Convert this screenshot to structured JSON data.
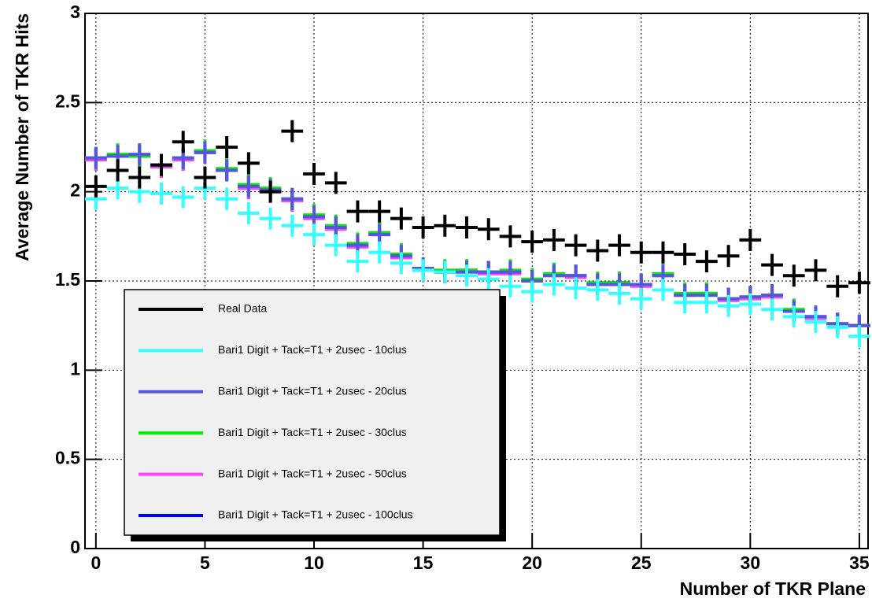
{
  "chart_data": {
    "type": "errorcross",
    "x_label": "Number of TKR Plane",
    "y_label": "Average Number of TKR Hits",
    "x": [
      0,
      1,
      2,
      3,
      4,
      5,
      6,
      7,
      8,
      9,
      10,
      11,
      12,
      13,
      14,
      15,
      16,
      17,
      18,
      19,
      20,
      21,
      22,
      23,
      24,
      25,
      26,
      27,
      28,
      29,
      30,
      31,
      32,
      33,
      34,
      35
    ],
    "xlim": [
      -0.5,
      35.4
    ],
    "xticks": [
      0,
      5,
      10,
      15,
      20,
      25,
      30,
      35
    ],
    "ylim": [
      0,
      3
    ],
    "yticks": [
      0,
      0.5,
      1,
      1.5,
      2,
      2.5,
      3
    ],
    "grid": true,
    "legend": "lower-left",
    "series": [
      {
        "name": "Real Data",
        "color": "#000000",
        "values": [
          2.03,
          2.12,
          2.08,
          2.15,
          2.28,
          2.08,
          2.25,
          2.16,
          2.0,
          2.34,
          2.1,
          2.05,
          1.89,
          1.89,
          1.85,
          1.8,
          1.81,
          1.8,
          1.79,
          1.75,
          1.72,
          1.73,
          1.7,
          1.67,
          1.7,
          1.66,
          1.66,
          1.65,
          1.61,
          1.64,
          1.73,
          1.59,
          1.53,
          1.56,
          1.47,
          1.49
        ]
      },
      {
        "name": "Bari1 Digit + Tack=T1 + 2usec - 10clus",
        "color": "#33ffff",
        "values": [
          1.96,
          2.02,
          2.0,
          1.99,
          1.97,
          2.02,
          1.96,
          1.88,
          1.85,
          1.81,
          1.76,
          1.7,
          1.61,
          1.66,
          1.6,
          1.56,
          1.55,
          1.53,
          1.51,
          1.47,
          1.44,
          1.48,
          1.46,
          1.45,
          1.43,
          1.4,
          1.45,
          1.38,
          1.38,
          1.36,
          1.37,
          1.34,
          1.3,
          1.27,
          1.24,
          1.19
        ]
      },
      {
        "name": "Bari1 Digit + Tack=T1 + 2usec - 20clus",
        "color": "#5555dd",
        "values": [
          2.19,
          2.2,
          2.21,
          2.15,
          2.19,
          2.22,
          2.12,
          2.03,
          2.01,
          1.96,
          1.86,
          1.8,
          1.7,
          1.76,
          1.64,
          1.57,
          1.55,
          1.55,
          1.55,
          1.55,
          1.5,
          1.53,
          1.53,
          1.48,
          1.48,
          1.48,
          1.53,
          1.42,
          1.42,
          1.4,
          1.41,
          1.42,
          1.33,
          1.3,
          1.26,
          1.25
        ]
      },
      {
        "name": "Bari1 Digit + Tack=T1 + 2usec - 30clus",
        "color": "#00ee00",
        "values": [
          2.19,
          2.21,
          2.2,
          2.15,
          2.19,
          2.23,
          2.13,
          2.04,
          2.02,
          1.96,
          1.87,
          1.81,
          1.71,
          1.77,
          1.65,
          1.57,
          1.56,
          1.56,
          1.55,
          1.56,
          1.51,
          1.54,
          1.53,
          1.49,
          1.49,
          1.48,
          1.54,
          1.43,
          1.43,
          1.4,
          1.41,
          1.42,
          1.34,
          1.3,
          1.26,
          1.25
        ]
      },
      {
        "name": "Bari1 Digit + Tack=T1 + 2usec - 50clus",
        "color": "#ff44ff",
        "values": [
          2.18,
          2.2,
          2.2,
          2.14,
          2.18,
          2.22,
          2.12,
          2.02,
          2.0,
          1.95,
          1.85,
          1.79,
          1.69,
          1.76,
          1.63,
          1.56,
          1.55,
          1.55,
          1.54,
          1.54,
          1.5,
          1.53,
          1.52,
          1.48,
          1.48,
          1.47,
          1.53,
          1.42,
          1.42,
          1.39,
          1.4,
          1.41,
          1.33,
          1.29,
          1.26,
          1.25
        ]
      },
      {
        "name": "Bari1 Digit + Tack=T1 + 2usec - 100clus",
        "color": "#0000ff",
        "values": [
          2.18,
          2.2,
          2.2,
          2.14,
          2.18,
          2.22,
          2.12,
          2.02,
          2.01,
          1.95,
          1.86,
          1.8,
          1.7,
          1.77,
          1.64,
          1.57,
          1.55,
          1.56,
          1.55,
          1.55,
          1.5,
          1.54,
          1.53,
          1.48,
          1.49,
          1.48,
          1.54,
          1.42,
          1.43,
          1.4,
          1.41,
          1.42,
          1.33,
          1.3,
          1.26,
          1.25
        ]
      }
    ]
  }
}
